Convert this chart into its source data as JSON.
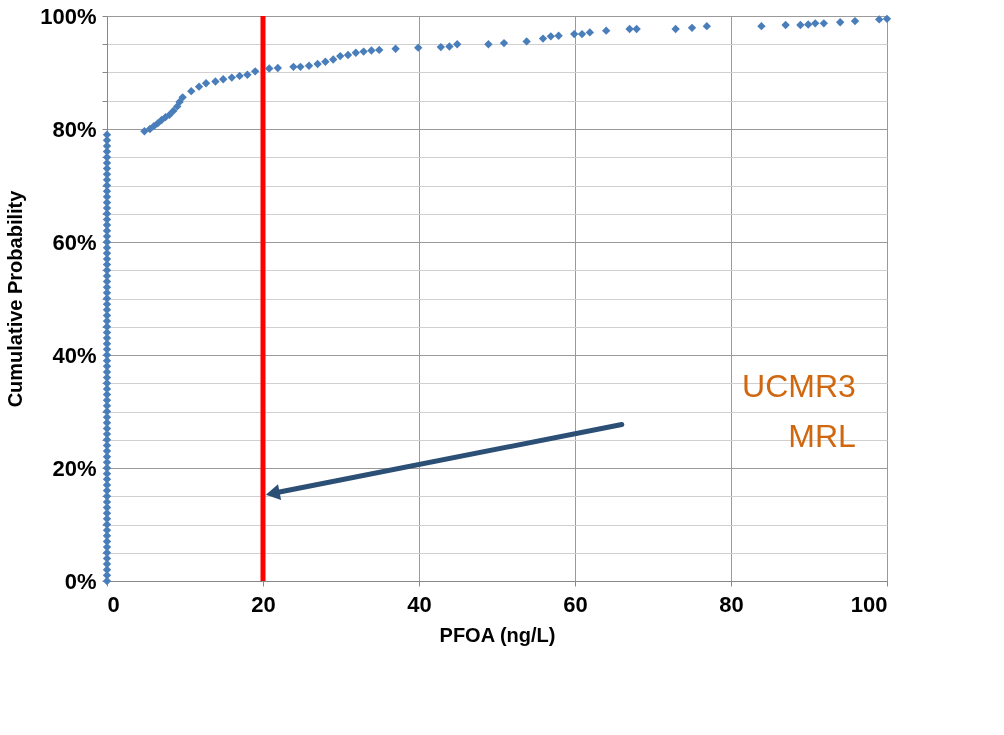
{
  "chart_data": {
    "type": "scatter",
    "xlabel": "PFOA (ng/L)",
    "ylabel": "Cumulative Probability",
    "series": [
      {
        "color": "#4a7ebb",
        "x": [
          0,
          0,
          0,
          0,
          0,
          0,
          0,
          0,
          0,
          0,
          0,
          0,
          0,
          0,
          0,
          0,
          0,
          0,
          0,
          0,
          0,
          0,
          0,
          0,
          0,
          0,
          0,
          0,
          0,
          0,
          0,
          0,
          0,
          0,
          0,
          0,
          0,
          0,
          0,
          0,
          0,
          0,
          0,
          0,
          0,
          0,
          0,
          0,
          0,
          0,
          0,
          0,
          0,
          0,
          0,
          0,
          0,
          0,
          0,
          0,
          0,
          0,
          0,
          0,
          0,
          0,
          0,
          0,
          0,
          0,
          0,
          0,
          0,
          0,
          0,
          0,
          0,
          0,
          0,
          0,
          4.8,
          5.5,
          6,
          6.5,
          7,
          7.5,
          8,
          8.5,
          9,
          9.3,
          9.7,
          10.8,
          11.8,
          12.7,
          13.9,
          14.9,
          16,
          17,
          18,
          19,
          20.8,
          21.9,
          23.9,
          24.8,
          25.9,
          27,
          28,
          29,
          29.9,
          30.9,
          31.9,
          32.9,
          33.9,
          34.9,
          37,
          39.9,
          42.8,
          43.9,
          44.9,
          48.9,
          50.9,
          53.8,
          55.9,
          56.9,
          57.9,
          59.9,
          60.9,
          61.9,
          64,
          67,
          67.9,
          72.9,
          75,
          76.9,
          83.9,
          87,
          88.9,
          89.9,
          90.8,
          91.9,
          94,
          95.9,
          99,
          100
        ],
        "values": [
          0,
          1,
          2,
          3,
          4,
          5,
          6,
          7,
          8,
          9,
          10,
          11,
          12,
          13,
          14,
          15,
          16,
          17,
          18,
          19,
          20,
          21,
          22,
          23,
          24,
          25,
          26,
          27,
          28,
          29,
          30,
          31,
          32,
          33,
          34,
          35,
          36,
          37,
          38,
          39,
          40,
          41,
          42,
          43,
          44,
          45,
          46,
          47,
          48,
          49,
          50,
          51,
          52,
          53,
          54,
          55,
          56,
          57,
          58,
          59,
          60,
          61,
          62,
          63,
          64,
          65,
          66,
          67,
          68,
          69,
          70,
          71,
          72,
          73,
          74,
          75,
          76,
          77,
          78,
          79,
          79.6,
          80,
          80.5,
          81,
          81.6,
          82.1,
          82.5,
          83.2,
          84,
          84.8,
          85.6,
          86.7,
          87.5,
          88.1,
          88.4,
          88.8,
          89.1,
          89.4,
          89.6,
          90.2,
          90.7,
          90.8,
          91,
          91,
          91.2,
          91.5,
          91.9,
          92.3,
          92.9,
          93.1,
          93.5,
          93.7,
          93.9,
          94,
          94.2,
          94.4,
          94.5,
          94.6,
          95,
          95,
          95.2,
          95.5,
          96,
          96.4,
          96.5,
          96.8,
          96.8,
          97.1,
          97.4,
          97.7,
          97.7,
          97.7,
          97.9,
          98.2,
          98.2,
          98.4,
          98.4,
          98.5,
          98.7,
          98.7,
          98.9,
          99.1,
          99.4,
          99.5
        ]
      }
    ],
    "marker": "diamond",
    "grid": true,
    "annotations": [
      "UCMR3\nMRL"
    ],
    "xlim": [
      0,
      100
    ],
    "xticks": [
      0,
      20,
      40,
      60,
      80,
      100
    ],
    "ylim": [
      0,
      100
    ],
    "yticks": [
      {
        "value": 0,
        "label": "0%"
      },
      {
        "value": 5,
        "label": null
      },
      {
        "value": 10,
        "label": null
      },
      {
        "value": 15,
        "label": null
      },
      {
        "value": 20,
        "label": "20%"
      },
      {
        "value": 25,
        "label": null
      },
      {
        "value": 30,
        "label": null
      },
      {
        "value": 35,
        "label": null
      },
      {
        "value": 40,
        "label": "40%"
      },
      {
        "value": 45,
        "label": null
      },
      {
        "value": 50,
        "label": null
      },
      {
        "value": 55,
        "label": null
      },
      {
        "value": 60,
        "label": "60%"
      },
      {
        "value": 65,
        "label": null
      },
      {
        "value": 70,
        "label": null
      },
      {
        "value": 75,
        "label": null
      },
      {
        "value": 80,
        "label": "80%"
      },
      {
        "value": 85,
        "label": null
      },
      {
        "value": 90,
        "label": null
      },
      {
        "value": 95,
        "label": null
      },
      {
        "value": 100,
        "label": "100%"
      }
    ],
    "ref_lines": [
      {
        "axis": "x",
        "value": 20,
        "color": "#ff0000"
      }
    ]
  }
}
